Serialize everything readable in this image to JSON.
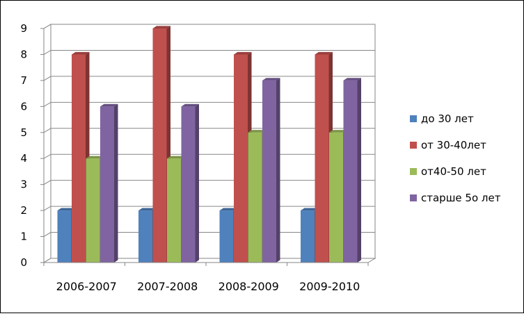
{
  "chart_data": {
    "type": "bar",
    "title": "",
    "xlabel": "",
    "ylabel": "",
    "categories": [
      "2006-2007",
      "2007-2008",
      "2008-2009",
      "2009-2010"
    ],
    "ylim": [
      0,
      9
    ],
    "yticks": [
      0,
      1,
      2,
      3,
      4,
      5,
      6,
      7,
      8,
      9
    ],
    "grid": true,
    "style": "3d-clustered-column",
    "legend": "right",
    "series": [
      {
        "name": "до 30 лет",
        "color": "#4F81BD",
        "values": [
          2,
          2,
          2,
          2
        ]
      },
      {
        "name": "от 30-40лет",
        "color": "#C0504D",
        "values": [
          8,
          9,
          8,
          8
        ]
      },
      {
        "name": "от40-50 лет",
        "color": "#9BBB59",
        "values": [
          4,
          4,
          5,
          5
        ]
      },
      {
        "name": "старше 5о лет",
        "color": "#8064A2",
        "values": [
          6,
          6,
          7,
          7
        ]
      }
    ]
  }
}
